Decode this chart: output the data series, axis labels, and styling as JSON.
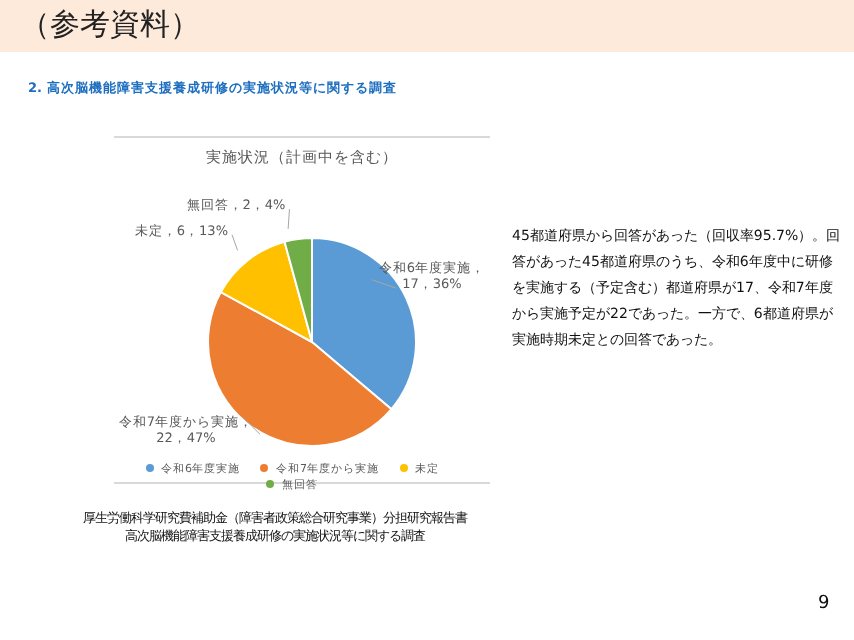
{
  "chart_data": {
    "type": "pie",
    "title": "（参考資料）",
    "subtitle": "2. 高次脳機能障害支援養成研修の実施状況等に関する調査",
    "xlabel": "実施状況（計画中を含む）",
    "categories": [
      "令和6年度実施",
      "令和7年度から実施",
      "未定",
      "無回答"
    ],
    "values": [
      17,
      22,
      6,
      2
    ],
    "colors": [
      "#5b9bd5",
      "#ed7d31",
      "#ffc000",
      "#70ad47"
    ],
    "value_labels": [
      "令和6年度実施，17，36%",
      "令和7年度から実施，22，47%",
      "未定，6，13%",
      "無回答，2，4%"
    ],
    "legend": "bottom",
    "annotations": [
      "45都道府県から回答があった（回収率95.7%）。回答があった45都道府県のうち、令和6年度中に研修を実施する（予定含む）都道府県が17、令和7年度から実施予定が22であった。一方で、6都道府県が実施時期未定との回答であった。",
      "厚生労働科学研究費補助金（障害者政策総合研究事業）分担研究報告書",
      "高次脳機能障害支援養成研修の実施状況等に関する調査",
      "9"
    ]
  }
}
